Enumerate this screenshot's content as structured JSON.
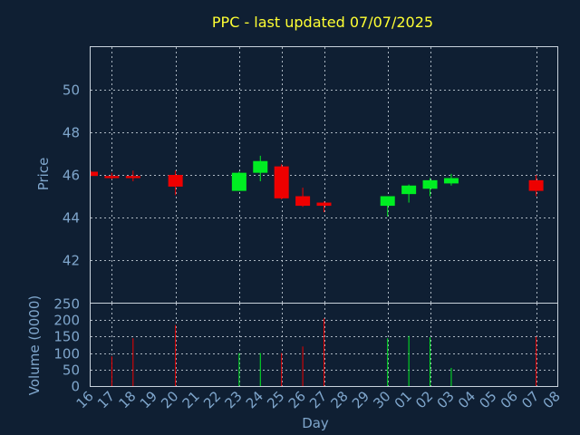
{
  "chart_data": {
    "type": "candlestick",
    "title": "PPC - last updated 07/07/2025",
    "xlabel": "Day",
    "price_panel": {
      "ylabel": "Price",
      "ylim": [
        40.0,
        52.0
      ],
      "yticks": [
        "42",
        "44",
        "46",
        "48",
        "50"
      ],
      "ytick_values": [
        42,
        44,
        46,
        48,
        50
      ],
      "grid": true
    },
    "volume_panel": {
      "ylabel": "Volume (0000)",
      "ylim": [
        0,
        250
      ],
      "yticks": [
        "0",
        "50",
        "100",
        "150",
        "200",
        "250"
      ],
      "ytick_values": [
        0,
        50,
        100,
        150,
        200,
        250
      ],
      "grid": true
    },
    "x_tick_labels": [
      "16",
      "17",
      "18",
      "19",
      "20",
      "21",
      "22",
      "23",
      "24",
      "25",
      "26",
      "27",
      "28",
      "29",
      "30",
      "01",
      "02",
      "03",
      "04",
      "05",
      "06",
      "07",
      "08"
    ],
    "x_grid_ticks": [
      "17",
      "20",
      "23",
      "25",
      "27",
      "30",
      "02",
      "07"
    ],
    "colors": {
      "up": "#00ee22",
      "down": "#ee0000",
      "background": "#0f1f33",
      "title": "#ffff33",
      "text": "#7fa6cc"
    },
    "candles": [
      {
        "day": "16",
        "open": 46.15,
        "high": 46.2,
        "low": 45.95,
        "close": 45.95,
        "volume": 0
      },
      {
        "day": "17",
        "open": 45.95,
        "high": 46.1,
        "low": 45.8,
        "close": 45.85,
        "volume": 90
      },
      {
        "day": "18",
        "open": 45.95,
        "high": 46.2,
        "low": 45.7,
        "close": 45.85,
        "volume": 145
      },
      {
        "day": "20",
        "open": 46.0,
        "high": 46.2,
        "low": 45.05,
        "close": 45.45,
        "volume": 185
      },
      {
        "day": "23",
        "open": 45.25,
        "high": 46.15,
        "low": 45.25,
        "close": 46.1,
        "volume": 100
      },
      {
        "day": "24",
        "open": 46.1,
        "high": 46.9,
        "low": 45.7,
        "close": 46.65,
        "volume": 100
      },
      {
        "day": "25",
        "open": 46.4,
        "high": 46.5,
        "low": 44.85,
        "close": 44.9,
        "volume": 100
      },
      {
        "day": "26",
        "open": 45.0,
        "high": 45.4,
        "low": 44.5,
        "close": 44.55,
        "volume": 120
      },
      {
        "day": "27",
        "open": 44.7,
        "high": 44.75,
        "low": 44.25,
        "close": 44.55,
        "volume": 205
      },
      {
        "day": "30",
        "open": 44.55,
        "high": 45.0,
        "low": 44.05,
        "close": 45.0,
        "volume": 145
      },
      {
        "day": "01",
        "open": 45.1,
        "high": 45.55,
        "low": 44.7,
        "close": 45.5,
        "volume": 152
      },
      {
        "day": "02",
        "open": 45.35,
        "high": 45.85,
        "low": 45.0,
        "close": 45.75,
        "volume": 148
      },
      {
        "day": "03",
        "open": 45.6,
        "high": 46.05,
        "low": 45.5,
        "close": 45.85,
        "volume": 55
      },
      {
        "day": "07",
        "open": 45.75,
        "high": 46.0,
        "low": 45.0,
        "close": 45.25,
        "volume": 150
      }
    ]
  }
}
